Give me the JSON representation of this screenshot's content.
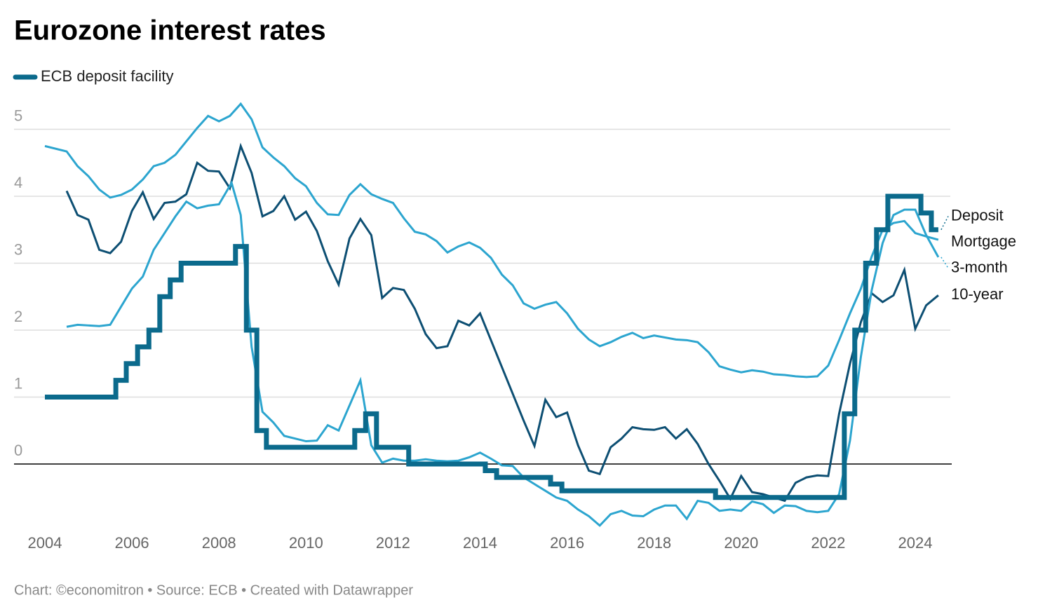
{
  "chart_data": {
    "type": "line",
    "title": "Eurozone interest rates",
    "legend_label": "ECB deposit facility",
    "footer": "Chart: ©economitron • Source: ECB • Created with Datawrapper",
    "xlim": [
      2004,
      2024.8
    ],
    "xticks": [
      2004,
      2006,
      2008,
      2010,
      2012,
      2014,
      2016,
      2018,
      2020,
      2022,
      2024
    ],
    "ylim": [
      -1,
      5.5
    ],
    "yticks": [
      0,
      1,
      2,
      3,
      4,
      5
    ],
    "grid": true,
    "series": [
      {
        "name": "Deposit",
        "color": "#0b6a8c",
        "width": 7,
        "legend": true,
        "x": [
          2004,
          2005.63,
          2005.63,
          2005.87,
          2005.87,
          2006.13,
          2006.13,
          2006.39,
          2006.39,
          2006.64,
          2006.64,
          2006.88,
          2006.88,
          2007.13,
          2007.13,
          2008.38,
          2008.38,
          2008.63,
          2008.63,
          2008.87,
          2008.87,
          2009.09,
          2009.09,
          2011.12,
          2011.12,
          2011.37,
          2011.37,
          2011.62,
          2011.62,
          2012.36,
          2012.36,
          2014.12,
          2014.12,
          2014.38,
          2014.38,
          2015.62,
          2015.62,
          2015.88,
          2015.88,
          2019.41,
          2019.41,
          2022.37,
          2022.37,
          2022.61,
          2022.61,
          2022.86,
          2022.86,
          2023.11,
          2023.11,
          2023.37,
          2023.37,
          2024.13,
          2024.13,
          2024.37,
          2024.37,
          2024.53
        ],
        "values": [
          1,
          1,
          1.25,
          1.25,
          1.5,
          1.5,
          1.75,
          1.75,
          2,
          2,
          2.5,
          2.5,
          2.75,
          2.75,
          3,
          3,
          3.25,
          3.25,
          2,
          2,
          0.5,
          0.5,
          0.25,
          0.25,
          0.5,
          0.5,
          0.75,
          0.75,
          0.25,
          0.25,
          0,
          0,
          -0.1,
          -0.1,
          -0.2,
          -0.2,
          -0.3,
          -0.3,
          -0.4,
          -0.4,
          -0.5,
          -0.5,
          0.75,
          0.75,
          2,
          2,
          3,
          3,
          3.5,
          3.5,
          4,
          4,
          3.75,
          3.75,
          3.5,
          3.5
        ]
      },
      {
        "name": "Mortgage",
        "color": "#2ca5cf",
        "width": 3,
        "x": [
          2004,
          2004.5,
          2004.75,
          2005,
          2005.25,
          2005.5,
          2005.75,
          2006,
          2006.25,
          2006.5,
          2006.75,
          2007,
          2007.25,
          2007.5,
          2007.75,
          2008,
          2008.25,
          2008.5,
          2008.75,
          2009,
          2009.25,
          2009.5,
          2009.75,
          2010,
          2010.25,
          2010.5,
          2010.75,
          2011,
          2011.25,
          2011.5,
          2011.75,
          2012,
          2012.25,
          2012.5,
          2012.75,
          2013,
          2013.25,
          2013.5,
          2013.75,
          2014,
          2014.25,
          2014.5,
          2014.75,
          2015,
          2015.25,
          2015.5,
          2015.75,
          2016,
          2016.25,
          2016.5,
          2016.75,
          2017,
          2017.25,
          2017.5,
          2017.75,
          2018,
          2018.25,
          2018.5,
          2018.75,
          2019,
          2019.25,
          2019.5,
          2019.75,
          2020,
          2020.25,
          2020.5,
          2020.75,
          2021,
          2021.25,
          2021.5,
          2021.75,
          2022,
          2022.25,
          2022.5,
          2022.75,
          2023,
          2023.25,
          2023.5,
          2023.75,
          2024,
          2024.25,
          2024.53
        ],
        "values": [
          4.75,
          4.67,
          4.45,
          4.3,
          4.1,
          3.98,
          4.02,
          4.1,
          4.25,
          4.45,
          4.5,
          4.62,
          4.82,
          5.02,
          5.2,
          5.12,
          5.2,
          5.38,
          5.15,
          4.73,
          4.58,
          4.45,
          4.27,
          4.15,
          3.9,
          3.73,
          3.72,
          4.02,
          4.18,
          4.03,
          3.96,
          3.9,
          3.67,
          3.47,
          3.43,
          3.33,
          3.16,
          3.25,
          3.31,
          3.23,
          3.08,
          2.83,
          2.67,
          2.4,
          2.32,
          2.38,
          2.42,
          2.25,
          2.02,
          1.86,
          1.76,
          1.82,
          1.9,
          1.96,
          1.88,
          1.92,
          1.89,
          1.86,
          1.85,
          1.82,
          1.67,
          1.46,
          1.41,
          1.37,
          1.4,
          1.38,
          1.34,
          1.33,
          1.31,
          1.3,
          1.31,
          1.47,
          1.85,
          2.25,
          2.62,
          3.1,
          3.5,
          3.6,
          3.63,
          3.45,
          3.4,
          3.35
        ]
      },
      {
        "name": "3-month",
        "color": "#2ca5cf",
        "width": 3,
        "x": [
          2004.5,
          2004.75,
          2005,
          2005.25,
          2005.5,
          2005.75,
          2006,
          2006.25,
          2006.5,
          2006.75,
          2007,
          2007.25,
          2007.5,
          2007.75,
          2008,
          2008.29,
          2008.5,
          2008.75,
          2009,
          2009.25,
          2009.5,
          2009.75,
          2010,
          2010.25,
          2010.5,
          2010.75,
          2011.25,
          2011.5,
          2011.75,
          2012,
          2012.25,
          2012.5,
          2012.75,
          2013,
          2013.25,
          2013.5,
          2013.75,
          2014,
          2014.25,
          2014.5,
          2014.75,
          2015,
          2015.25,
          2015.5,
          2015.75,
          2016,
          2016.25,
          2016.5,
          2016.75,
          2017,
          2017.25,
          2017.5,
          2017.75,
          2018,
          2018.25,
          2018.5,
          2018.75,
          2019,
          2019.25,
          2019.5,
          2019.75,
          2020,
          2020.25,
          2020.5,
          2020.75,
          2021,
          2021.25,
          2021.5,
          2021.75,
          2022,
          2022.25,
          2022.5,
          2022.75,
          2023,
          2023.25,
          2023.5,
          2023.75,
          2024,
          2024.25,
          2024.53
        ],
        "values": [
          2.05,
          2.08,
          2.07,
          2.06,
          2.08,
          2.35,
          2.62,
          2.8,
          3.2,
          3.45,
          3.7,
          3.92,
          3.82,
          3.86,
          3.88,
          4.2,
          3.72,
          1.75,
          0.78,
          0.62,
          0.42,
          0.38,
          0.34,
          0.35,
          0.58,
          0.5,
          1.25,
          0.28,
          0.02,
          0.08,
          0.05,
          0.05,
          0.07,
          0.05,
          0.04,
          0.05,
          0.1,
          0.17,
          0.08,
          -0.02,
          -0.03,
          -0.2,
          -0.3,
          -0.4,
          -0.5,
          -0.55,
          -0.68,
          -0.78,
          -0.92,
          -0.75,
          -0.7,
          -0.77,
          -0.78,
          -0.68,
          -0.62,
          -0.62,
          -0.82,
          -0.55,
          -0.58,
          -0.7,
          -0.68,
          -0.7,
          -0.56,
          -0.6,
          -0.73,
          -0.62,
          -0.63,
          -0.7,
          -0.72,
          -0.7,
          -0.45,
          0.35,
          1.6,
          2.6,
          3.3,
          3.72,
          3.8,
          3.8,
          3.42,
          3.09
        ]
      },
      {
        "name": "10-year",
        "color": "#0d4f73",
        "width": 3,
        "x": [
          2004.5,
          2004.75,
          2005,
          2005.25,
          2005.5,
          2005.75,
          2006,
          2006.25,
          2006.5,
          2006.75,
          2007,
          2007.25,
          2007.5,
          2007.75,
          2008,
          2008.25,
          2008.5,
          2008.75,
          2009,
          2009.25,
          2009.5,
          2009.75,
          2010,
          2010.25,
          2010.5,
          2010.75,
          2011,
          2011.25,
          2011.5,
          2011.75,
          2012,
          2012.25,
          2012.5,
          2012.75,
          2013,
          2013.25,
          2013.5,
          2013.75,
          2014,
          2014.25,
          2014.5,
          2014.75,
          2015,
          2015.25,
          2015.5,
          2015.75,
          2016,
          2016.25,
          2016.5,
          2016.75,
          2017,
          2017.25,
          2017.5,
          2017.75,
          2018,
          2018.25,
          2018.5,
          2018.75,
          2019,
          2019.25,
          2019.5,
          2019.75,
          2020,
          2020.25,
          2020.5,
          2020.75,
          2021,
          2021.25,
          2021.5,
          2021.75,
          2022,
          2022.25,
          2022.5,
          2022.75,
          2023,
          2023.25,
          2023.5,
          2023.75,
          2024,
          2024.25,
          2024.53
        ],
        "values": [
          4.08,
          3.72,
          3.65,
          3.2,
          3.15,
          3.32,
          3.78,
          4.06,
          3.66,
          3.9,
          3.92,
          4.03,
          4.5,
          4.38,
          4.37,
          4.12,
          4.75,
          4.35,
          3.7,
          3.78,
          4,
          3.65,
          3.77,
          3.48,
          3.03,
          2.68,
          3.37,
          3.66,
          3.42,
          2.48,
          2.63,
          2.6,
          2.32,
          1.94,
          1.73,
          1.76,
          2.14,
          2.07,
          2.25,
          1.85,
          1.45,
          1.05,
          0.65,
          0.27,
          0.96,
          0.7,
          0.77,
          0.28,
          -0.1,
          -0.15,
          0.25,
          0.38,
          0.55,
          0.52,
          0.51,
          0.55,
          0.38,
          0.52,
          0.3,
          0,
          -0.25,
          -0.52,
          -0.18,
          -0.42,
          -0.45,
          -0.5,
          -0.55,
          -0.28,
          -0.2,
          -0.17,
          -0.18,
          0.75,
          1.5,
          2.12,
          2.55,
          2.42,
          2.52,
          2.9,
          2.02,
          2.37,
          2.52
        ]
      }
    ]
  }
}
